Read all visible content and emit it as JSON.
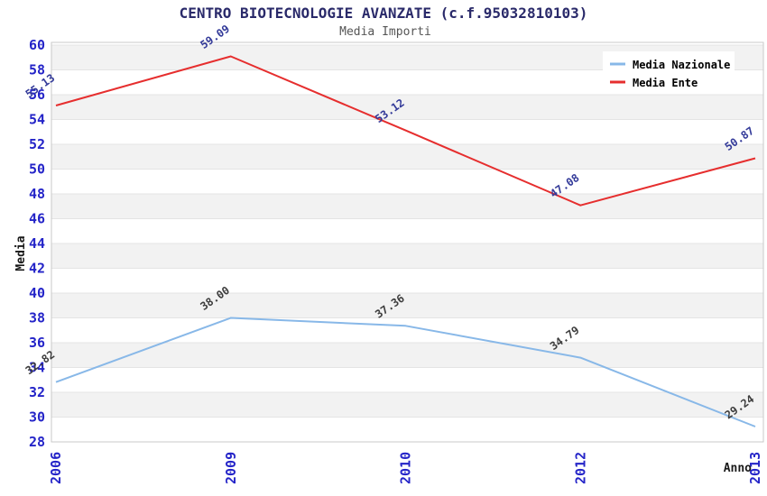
{
  "chart_data": {
    "type": "line",
    "title": "CENTRO BIOTECNOLOGIE AVANZATE (c.f.95032810103)",
    "subtitle": "Media Importi",
    "xlabel": "Anno",
    "ylabel": "Media",
    "categories": [
      "2006",
      "2009",
      "2010",
      "2012",
      "2013"
    ],
    "series": [
      {
        "name": "Media Nazionale",
        "color": "#88b8e8",
        "label_color": "#3d3d3d",
        "values": [
          32.82,
          38.0,
          37.36,
          34.79,
          29.24
        ]
      },
      {
        "name": "Media Ente",
        "color": "#e62e2e",
        "label_color": "#333a99",
        "values": [
          55.13,
          59.09,
          53.12,
          47.08,
          50.87
        ]
      }
    ],
    "ylim": [
      28,
      60
    ],
    "ytick_step": 2,
    "grid": "horizontal-bands",
    "legend_position": "top-right",
    "colors": {
      "tick_label": "#2424c8",
      "band": "#f2f2f2",
      "gridline": "#e4e4e4",
      "plot_border": "#c9c9c9",
      "title": "#2a2a6a",
      "subtitle": "#555555",
      "axis_label": "#1a1a1a",
      "legend_bg": "#ffffff"
    }
  }
}
